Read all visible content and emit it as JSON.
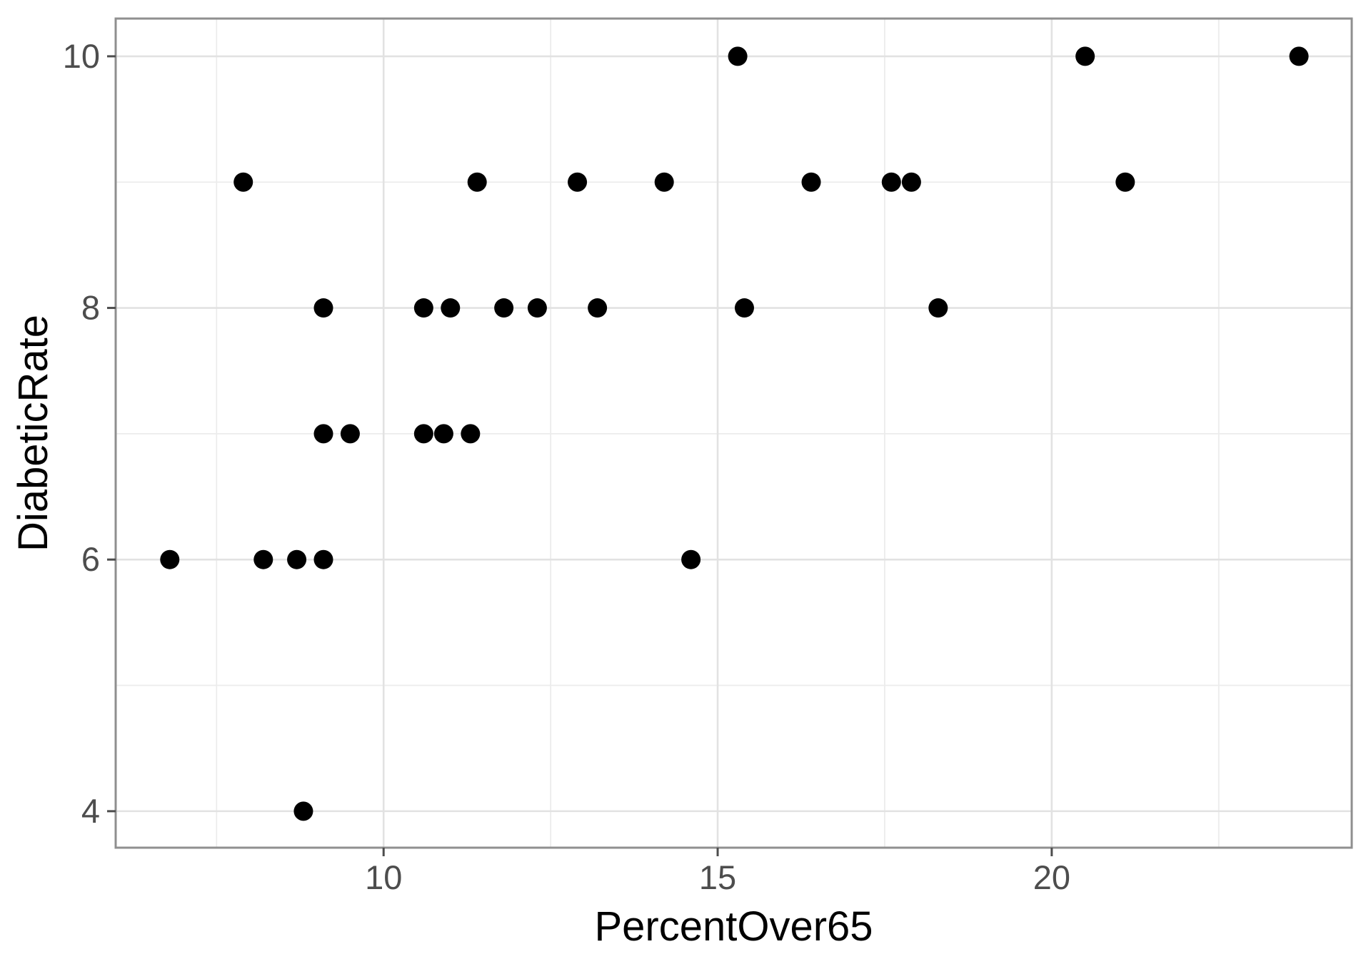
{
  "chart_data": {
    "type": "scatter",
    "title": "",
    "xlabel": "PercentOver65",
    "ylabel": "DiabeticRate",
    "x_ticks": [
      10,
      15,
      20
    ],
    "x_minor_gridlines": [
      7.5,
      12.5,
      17.5,
      22.5
    ],
    "y_ticks": [
      4,
      6,
      8,
      10
    ],
    "y_minor_gridlines": [
      5,
      7,
      9
    ],
    "xlim": [
      5.99,
      24.49
    ],
    "ylim": [
      3.71,
      10.3
    ],
    "grid": "on",
    "legend": "none",
    "points": [
      [
        6.8,
        6
      ],
      [
        7.9,
        9
      ],
      [
        8.2,
        6
      ],
      [
        8.7,
        6
      ],
      [
        8.8,
        4
      ],
      [
        9.1,
        6
      ],
      [
        9.1,
        7
      ],
      [
        9.1,
        8
      ],
      [
        9.5,
        7
      ],
      [
        10.6,
        7
      ],
      [
        10.6,
        8
      ],
      [
        10.9,
        7
      ],
      [
        11.0,
        8
      ],
      [
        11.3,
        7
      ],
      [
        11.4,
        9
      ],
      [
        11.8,
        8
      ],
      [
        12.3,
        8
      ],
      [
        12.9,
        9
      ],
      [
        13.2,
        8
      ],
      [
        14.2,
        9
      ],
      [
        14.6,
        6
      ],
      [
        15.3,
        10
      ],
      [
        15.4,
        8
      ],
      [
        16.4,
        9
      ],
      [
        17.6,
        9
      ],
      [
        17.9,
        9
      ],
      [
        18.3,
        8
      ],
      [
        20.5,
        10
      ],
      [
        21.1,
        9
      ],
      [
        23.7,
        10
      ]
    ],
    "style": {
      "point_color": "#000000",
      "panel_background": "#ffffff",
      "panel_border_color": "#8f8f8f",
      "grid_major_color": "#e2e2e2",
      "grid_minor_color": "#ececec",
      "tick_mark_color": "#4d4d4d",
      "tick_label_color": "#4d4d4d",
      "axis_title_color": "#000000"
    }
  }
}
